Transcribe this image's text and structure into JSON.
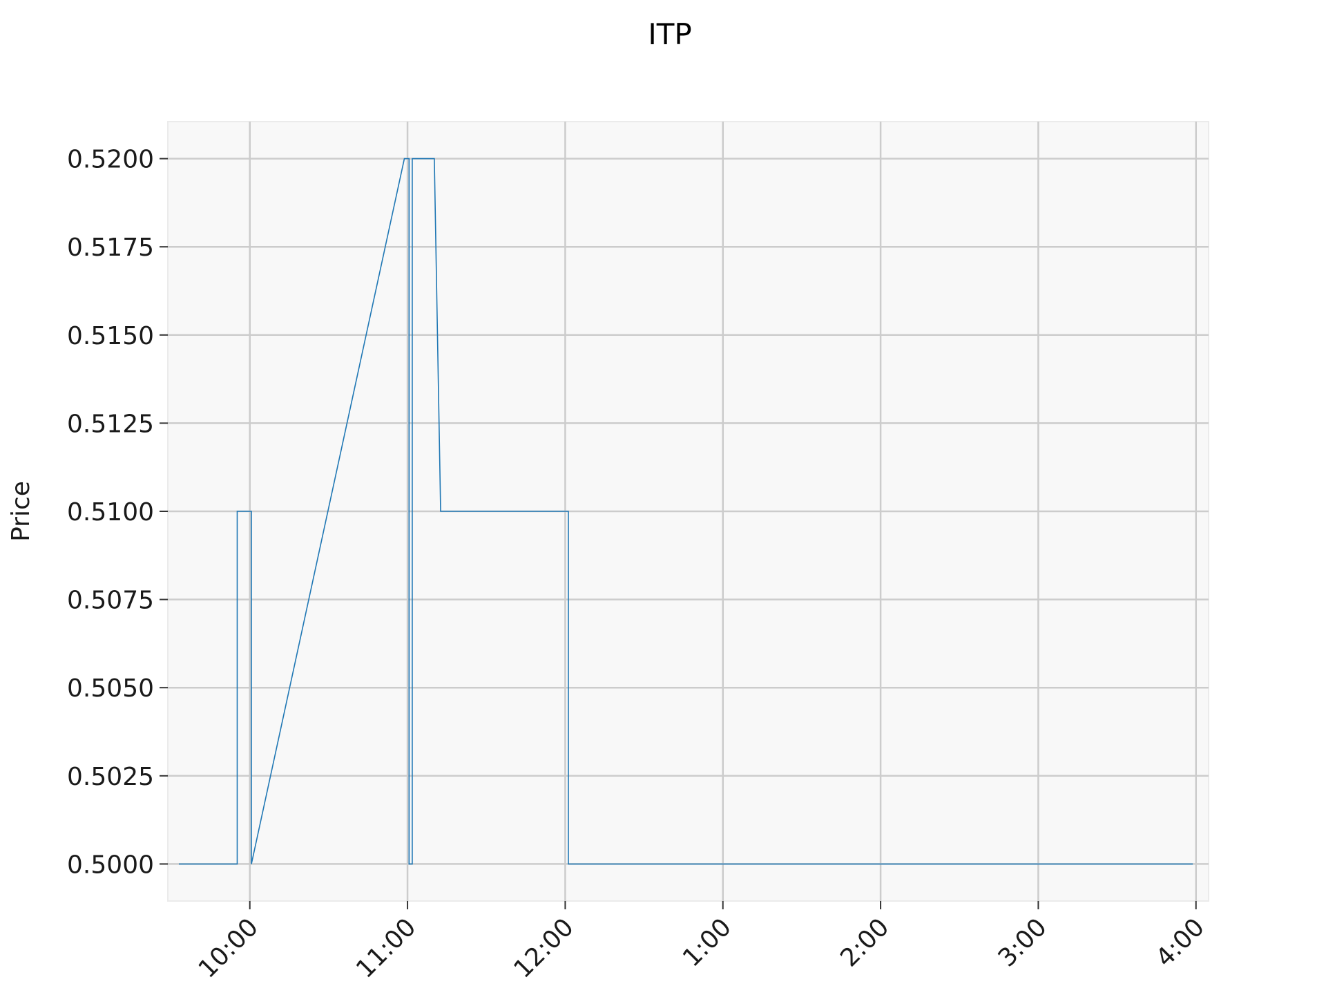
{
  "chart_data": {
    "type": "line",
    "title": "ITP",
    "xlabel": "",
    "ylabel": "Price",
    "x_tick_labels": [
      "10:00",
      "11:00",
      "12:00",
      "1:00",
      "2:00",
      "3:00",
      "4:00"
    ],
    "x_tick_hours": [
      10,
      11,
      12,
      13,
      14,
      15,
      16
    ],
    "y_tick_labels": [
      "0.5000",
      "0.5025",
      "0.5050",
      "0.5075",
      "0.5100",
      "0.5125",
      "0.5150",
      "0.5175",
      "0.5200"
    ],
    "y_tick_values": [
      0.5,
      0.5025,
      0.505,
      0.5075,
      0.51,
      0.5125,
      0.515,
      0.5175,
      0.52
    ],
    "xlim_hours": [
      9.48,
      16.08
    ],
    "ylim": [
      0.49895,
      0.52105
    ],
    "grid": true,
    "series": [
      {
        "color": "#1f77b4",
        "x_hours": [
          9.55,
          9.92,
          9.92,
          10.01,
          10.01,
          10.98,
          10.98,
          11.01,
          11.01,
          11.03,
          11.03,
          11.17,
          11.17,
          11.21,
          11.21,
          12.02,
          12.02,
          15.98
        ],
        "y": [
          0.5,
          0.5,
          0.51,
          0.51,
          0.5,
          0.52,
          0.52,
          0.52,
          0.5,
          0.5,
          0.52,
          0.52,
          0.52,
          0.51,
          0.51,
          0.51,
          0.5,
          0.5
        ]
      }
    ]
  }
}
